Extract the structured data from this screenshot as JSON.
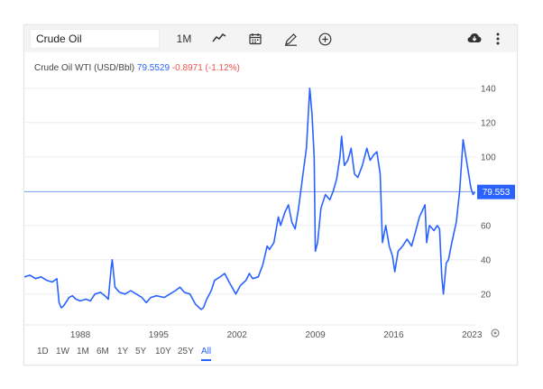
{
  "toolbar": {
    "symbol": "Crude Oil",
    "interval": "1M"
  },
  "header": {
    "name": "Crude Oil WTI (USD/Bbl)",
    "price": "79.5529",
    "change": "-0.8971 (-1.12%)"
  },
  "ranges": [
    "1D",
    "1W",
    "1M",
    "6M",
    "1Y",
    "5Y",
    "10Y",
    "25Y",
    "All"
  ],
  "active_range": "All",
  "colors": {
    "line": "#2962ff",
    "price_tag": "#2962ff",
    "down": "#ef5350"
  },
  "chart_data": {
    "type": "line",
    "title": "Crude Oil WTI (USD/Bbl)",
    "xlabel": "",
    "ylabel": "",
    "xlim": [
      1983,
      2023.3
    ],
    "ylim": [
      2,
      142
    ],
    "x_ticks": [
      "1988",
      "1995",
      "2002",
      "2009",
      "2016",
      "2023"
    ],
    "x_tick_values": [
      1988,
      1995,
      2002,
      2009,
      2016,
      2023
    ],
    "y_ticks": [
      20,
      40,
      60,
      80,
      100,
      120,
      140
    ],
    "grid": true,
    "last_price_label": "79.553",
    "last_price": 79.55,
    "series": [
      {
        "x": [
          1983.0,
          1983.5,
          1984.0,
          1984.5,
          1985.0,
          1985.5,
          1985.9,
          1986.1,
          1986.3,
          1986.5,
          1986.8,
          1987.0,
          1987.3,
          1987.6,
          1988.0,
          1988.5,
          1988.9,
          1989.3,
          1989.8,
          1990.2,
          1990.5,
          1990.75,
          1990.85,
          1991.1,
          1991.5,
          1992.0,
          1992.5,
          1993.0,
          1993.5,
          1993.9,
          1994.3,
          1994.8,
          1995.5,
          1996.0,
          1996.5,
          1996.9,
          1997.3,
          1997.8,
          1998.3,
          1998.8,
          1999.0,
          1999.3,
          1999.7,
          2000.0,
          2000.5,
          2000.9,
          2001.3,
          2001.9,
          2002.3,
          2002.8,
          2003.1,
          2003.4,
          2003.9,
          2004.3,
          2004.7,
          2004.9,
          2005.3,
          2005.7,
          2005.9,
          2006.3,
          2006.6,
          2006.9,
          2007.2,
          2007.5,
          2007.9,
          2008.2,
          2008.5,
          2008.7,
          2008.9,
          2009.0,
          2009.2,
          2009.5,
          2009.9,
          2010.3,
          2010.6,
          2010.9,
          2011.2,
          2011.35,
          2011.6,
          2011.9,
          2012.2,
          2012.5,
          2012.8,
          2013.2,
          2013.6,
          2013.9,
          2014.2,
          2014.5,
          2014.8,
          2015.0,
          2015.3,
          2015.6,
          2015.9,
          2016.1,
          2016.4,
          2016.8,
          2017.2,
          2017.6,
          2017.9,
          2018.3,
          2018.8,
          2018.95,
          2019.2,
          2019.6,
          2019.9,
          2020.1,
          2020.3,
          2020.45,
          2020.7,
          2020.9,
          2021.2,
          2021.6,
          2021.9,
          2022.2,
          2022.45,
          2022.7,
          2022.9,
          2023.1,
          2023.25
        ],
        "y": [
          30,
          31,
          29,
          30,
          28,
          27,
          29,
          15,
          12,
          13,
          16,
          18,
          19,
          17,
          16,
          17,
          16,
          20,
          21,
          19,
          17,
          35,
          40,
          24,
          21,
          20,
          22,
          20,
          18,
          15,
          18,
          19,
          18,
          20,
          22,
          24,
          21,
          20,
          14,
          11,
          12,
          17,
          22,
          28,
          30,
          32,
          27,
          20,
          25,
          28,
          32,
          29,
          30,
          37,
          48,
          46,
          50,
          65,
          60,
          68,
          72,
          62,
          58,
          70,
          90,
          105,
          140,
          125,
          100,
          45,
          50,
          70,
          78,
          75,
          80,
          87,
          100,
          112,
          95,
          98,
          105,
          90,
          88,
          95,
          105,
          98,
          101,
          103,
          90,
          50,
          60,
          48,
          42,
          33,
          45,
          48,
          52,
          48,
          55,
          65,
          72,
          50,
          60,
          57,
          60,
          58,
          30,
          20,
          38,
          40,
          50,
          62,
          80,
          110,
          100,
          90,
          82,
          78,
          79.55
        ]
      }
    ]
  }
}
